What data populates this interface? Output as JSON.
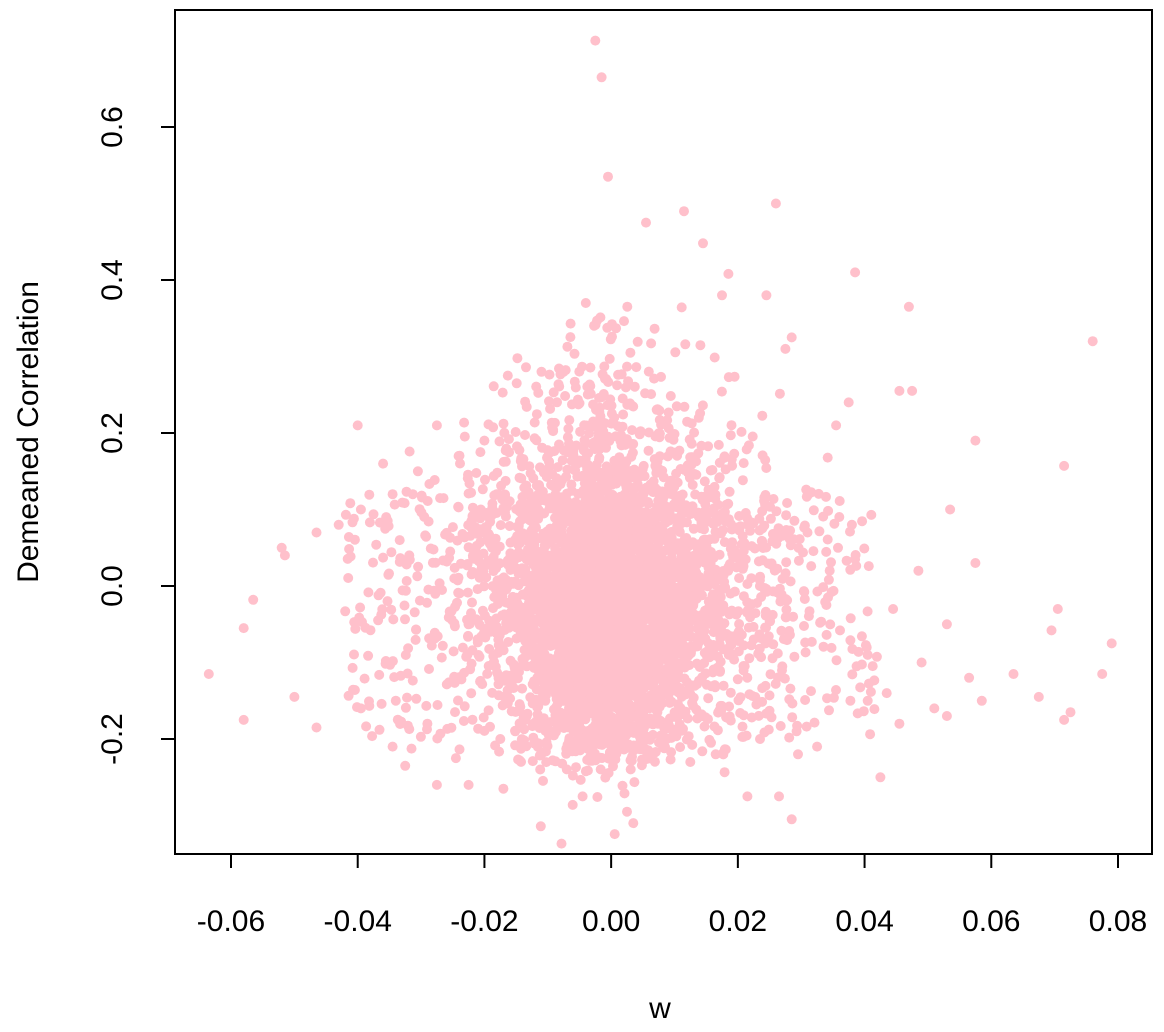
{
  "chart_data": {
    "type": "scatter",
    "title": "",
    "xlabel": "w",
    "ylabel": "Demeaned Correlation",
    "xlim": [
      -0.069,
      0.082
    ],
    "ylim": [
      -0.31,
      0.72
    ],
    "x_ticks": [
      -0.06,
      -0.04,
      -0.02,
      0.0,
      0.02,
      0.04,
      0.06,
      0.08
    ],
    "x_tick_labels": [
      "-0.06",
      "-0.04",
      "-0.02",
      "0.00",
      "0.02",
      "0.04",
      "0.06",
      "0.08"
    ],
    "y_ticks": [
      -0.2,
      0.0,
      0.2,
      0.4,
      0.6
    ],
    "y_tick_labels": [
      "-0.2",
      "0.0",
      "0.2",
      "0.4",
      "0.6"
    ],
    "grid": false,
    "legend": "none",
    "point_color": "#FFC0CB",
    "series": [
      {
        "x": [
          -0.0025,
          -0.0015,
          -0.0005,
          0.0055,
          0.0115,
          0.026,
          0.0385,
          0.047,
          0.076,
          0.0715,
          0.0575,
          0.0285,
          0.0275,
          0.0245,
          0.0185,
          0.0175,
          0.0145,
          -0.004,
          -0.0075,
          -0.011,
          -0.02,
          -0.0275,
          -0.04,
          -0.036,
          -0.0355,
          -0.0465,
          -0.052,
          -0.0515,
          -0.058,
          -0.0565,
          -0.0635,
          -0.058,
          -0.05,
          -0.0465,
          -0.0395,
          -0.0345,
          -0.0275,
          -0.0225,
          -0.017,
          -0.0045,
          0.0025,
          0.0035,
          0.0125,
          0.0215,
          0.0265,
          0.0285,
          0.0295,
          0.0425,
          0.0455,
          0.049,
          0.051,
          0.053,
          0.053,
          0.0565,
          0.0585,
          0.0635,
          0.0675,
          0.0695,
          0.0705,
          0.0715,
          0.0725,
          0.0775,
          0.079,
          0.0575,
          0.0535,
          0.0485,
          0.0445,
          0.0405,
          0.0385,
          0.0345,
          0.031,
          0.0455,
          0.0475,
          0.0375,
          0.0355,
          -0.043,
          -0.0395,
          -0.0345,
          -0.0305,
          -0.0325,
          -0.0245,
          -0.0175,
          0.0165,
          0.0235,
          0.0325,
          0.0405,
          0.0435
        ],
        "y": [
          0.713,
          0.665,
          0.535,
          0.475,
          0.49,
          0.5,
          0.41,
          0.365,
          0.32,
          0.157,
          0.19,
          0.325,
          0.31,
          0.38,
          0.408,
          0.38,
          0.448,
          0.37,
          0.28,
          0.28,
          0.19,
          0.21,
          0.21,
          0.16,
          0.09,
          0.07,
          0.05,
          0.04,
          -0.055,
          -0.018,
          -0.115,
          -0.175,
          -0.145,
          -0.185,
          -0.16,
          -0.21,
          -0.26,
          -0.26,
          -0.265,
          -0.275,
          -0.295,
          -0.31,
          -0.23,
          -0.275,
          -0.275,
          -0.305,
          -0.22,
          -0.25,
          -0.18,
          -0.1,
          -0.16,
          -0.17,
          -0.05,
          -0.12,
          -0.15,
          -0.115,
          -0.145,
          -0.058,
          -0.03,
          -0.175,
          -0.165,
          -0.115,
          -0.075,
          0.03,
          0.1,
          0.02,
          -0.03,
          -0.09,
          0.035,
          0.02,
          0.07,
          0.255,
          0.255,
          0.24,
          0.21,
          0.08,
          0.1,
          0.12,
          0.15,
          -0.235,
          -0.225,
          -0.2,
          -0.22,
          -0.2,
          -0.21,
          -0.15,
          -0.14
        ]
      }
    ]
  }
}
